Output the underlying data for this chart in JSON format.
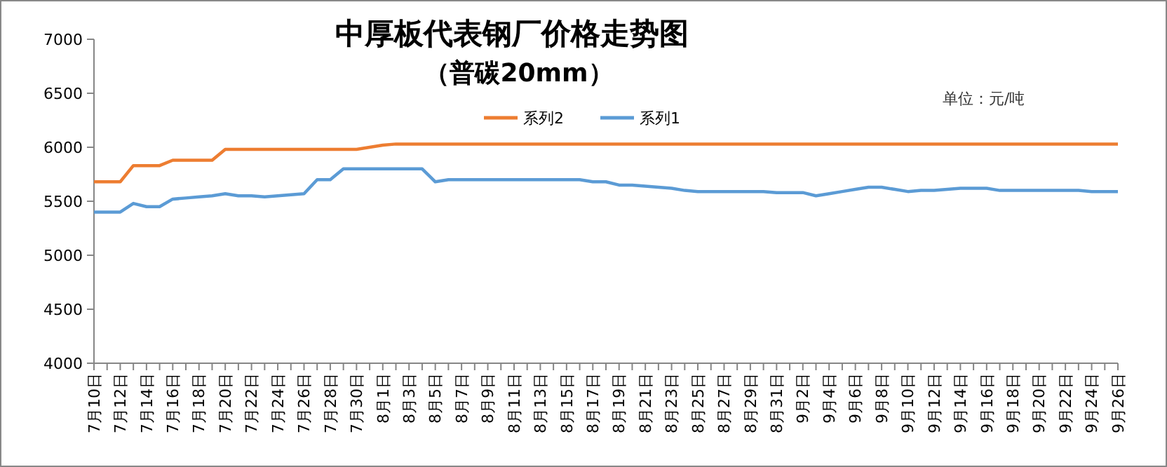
{
  "chart_data": {
    "type": "line",
    "title": "中厚板代表钢厂价格走势图",
    "subtitle": "（普碳20mm）",
    "annotations": [
      "单位：元/吨"
    ],
    "categories": [
      "7月10日",
      null,
      "7月12日",
      null,
      "7月14日",
      null,
      "7月16日",
      null,
      "7月18日",
      null,
      "7月20日",
      null,
      "7月22日",
      null,
      "7月24日",
      null,
      "7月26日",
      null,
      "7月28日",
      null,
      "7月30日",
      null,
      "8月1日",
      null,
      "8月3日",
      null,
      "8月5日",
      null,
      "8月7日",
      null,
      "8月9日",
      null,
      "8月11日",
      null,
      "8月13日",
      null,
      "8月15日",
      null,
      "8月17日",
      null,
      "8月19日",
      null,
      "8月21日",
      null,
      "8月23日",
      null,
      "8月25日",
      null,
      "8月27日",
      null,
      "8月29日",
      null,
      "8月31日",
      null,
      "9月2日",
      null,
      "9月4日",
      null,
      "9月6日",
      null,
      "9月8日",
      null,
      "9月10日",
      null,
      "9月12日",
      null,
      "9月14日",
      null,
      "9月16日",
      null,
      "9月18日",
      null,
      "9月20日",
      null,
      "9月22日",
      null,
      "9月24日",
      null,
      "9月26日"
    ],
    "series": [
      {
        "name": "系列2",
        "color": "#ed7d31",
        "values": [
          5680,
          5680,
          5680,
          5830,
          5830,
          5830,
          5880,
          5880,
          5880,
          5880,
          5980,
          5980,
          5980,
          5980,
          5980,
          5980,
          5980,
          5980,
          5980,
          5980,
          5980,
          6000,
          6020,
          6030,
          6030,
          6030,
          6030,
          6030,
          6030,
          6030,
          6030,
          6030,
          6030,
          6030,
          6030,
          6030,
          6030,
          6030,
          6030,
          6030,
          6030,
          6030,
          6030,
          6030,
          6030,
          6030,
          6030,
          6030,
          6030,
          6030,
          6030,
          6030,
          6030,
          6030,
          6030,
          6030,
          6030,
          6030,
          6030,
          6030,
          6030,
          6030,
          6030,
          6030,
          6030,
          6030,
          6030,
          6030,
          6030,
          6030,
          6030,
          6030,
          6030,
          6030,
          6030,
          6030,
          6030,
          6030,
          6030
        ]
      },
      {
        "name": "系列1",
        "color": "#5b9bd5",
        "values": [
          5400,
          5400,
          5400,
          5480,
          5450,
          5450,
          5520,
          5530,
          5540,
          5550,
          5570,
          5550,
          5550,
          5540,
          5550,
          5560,
          5570,
          5700,
          5700,
          5800,
          5800,
          5800,
          5800,
          5800,
          5800,
          5800,
          5680,
          5700,
          5700,
          5700,
          5700,
          5700,
          5700,
          5700,
          5700,
          5700,
          5700,
          5700,
          5680,
          5680,
          5650,
          5650,
          5640,
          5630,
          5620,
          5600,
          5590,
          5590,
          5590,
          5590,
          5590,
          5590,
          5580,
          5580,
          5580,
          5550,
          5570,
          5590,
          5610,
          5630,
          5630,
          5610,
          5590,
          5600,
          5600,
          5610,
          5620,
          5620,
          5620,
          5600,
          5600,
          5600,
          5600,
          5600,
          5600,
          5600,
          5590,
          5590,
          5590
        ]
      }
    ],
    "ylim": [
      4000,
      7000
    ],
    "yticks": [
      4000,
      4500,
      5000,
      5500,
      6000,
      6500,
      7000
    ],
    "legend": "top",
    "marker": "none",
    "line_style": "solid"
  }
}
